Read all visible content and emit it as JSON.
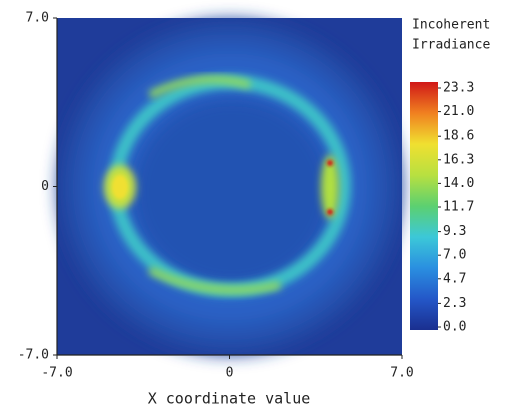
{
  "chart_data": {
    "type": "heatmap",
    "xlabel": "X coordinate value",
    "xlim": [
      -7,
      7
    ],
    "ylim": [
      -7,
      7
    ],
    "xticks": [
      {
        "value": -7,
        "label": "-7.0"
      },
      0,
      {
        "value": 7,
        "label": "7.0"
      }
    ],
    "yticks": [
      {
        "value": -7,
        "label": "-7.0"
      },
      0,
      {
        "value": 7,
        "label": "7.0"
      }
    ],
    "colorbar": {
      "label": [
        "Incoherent",
        "Irradiance"
      ],
      "lim": [
        0,
        23.3
      ],
      "ticks": [
        {
          "value": 0,
          "label": "0.0"
        },
        2.3,
        4.7,
        {
          "value": 7,
          "label": "7.0"
        },
        9.3,
        11.7,
        {
          "value": 14,
          "label": "14.0"
        },
        16.3,
        18.6,
        {
          "value": 21,
          "label": "21.0"
        },
        23.3
      ],
      "colors": [
        "#1a2f8f",
        "#2457c8",
        "#2a8fe0",
        "#3cc8d8",
        "#5cd070",
        "#b8e040",
        "#f0e030",
        "#f08020",
        "#d01818"
      ]
    }
  }
}
